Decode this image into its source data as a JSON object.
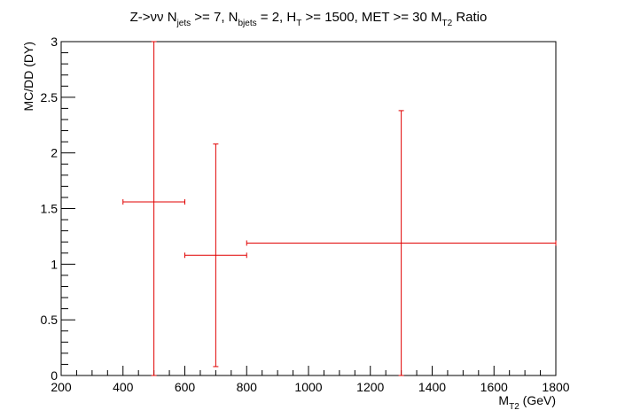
{
  "chart_data": {
    "type": "scatter",
    "title": {
      "parts": [
        {
          "t": "Z->νν N",
          "sub": false
        },
        {
          "t": "jets",
          "sub": true
        },
        {
          "t": " >= 7, N",
          "sub": false
        },
        {
          "t": "bjets",
          "sub": true
        },
        {
          "t": " = 2, H",
          "sub": false
        },
        {
          "t": "T",
          "sub": true
        },
        {
          "t": " >= 1500, MET >= 30 M",
          "sub": false
        },
        {
          "t": "T2",
          "sub": true
        },
        {
          "t": " Ratio",
          "sub": false
        }
      ]
    },
    "xlabel": {
      "parts": [
        {
          "t": "M",
          "sub": false
        },
        {
          "t": "T2",
          "sub": true
        },
        {
          "t": " (GeV)",
          "sub": false
        }
      ]
    },
    "ylabel": "MC/DD (DY)",
    "xlim": [
      200,
      1800
    ],
    "ylim": [
      0,
      3
    ],
    "x_ticks": [
      200,
      400,
      600,
      800,
      1000,
      1200,
      1400,
      1600,
      1800
    ],
    "x_tick_labels": [
      "200",
      "400",
      "600",
      "800",
      "1000",
      "1200",
      "1400",
      "1600",
      "1800"
    ],
    "y_ticks": [
      0,
      0.5,
      1,
      1.5,
      2,
      2.5,
      3
    ],
    "y_tick_labels": [
      "0",
      "0.5",
      "1",
      "1.5",
      "2",
      "2.5",
      "3"
    ],
    "grid": false,
    "color": "#e00000",
    "points": [
      {
        "x": 500,
        "x_low": 400,
        "x_high": 600,
        "y": 1.56,
        "y_low": 0,
        "y_high": 3
      },
      {
        "x": 700,
        "x_low": 600,
        "x_high": 800,
        "y": 1.08,
        "y_low": 0.08,
        "y_high": 2.08
      },
      {
        "x": 1300,
        "x_low": 800,
        "x_high": 1800,
        "y": 1.19,
        "y_low": 0,
        "y_high": 2.38
      }
    ]
  }
}
